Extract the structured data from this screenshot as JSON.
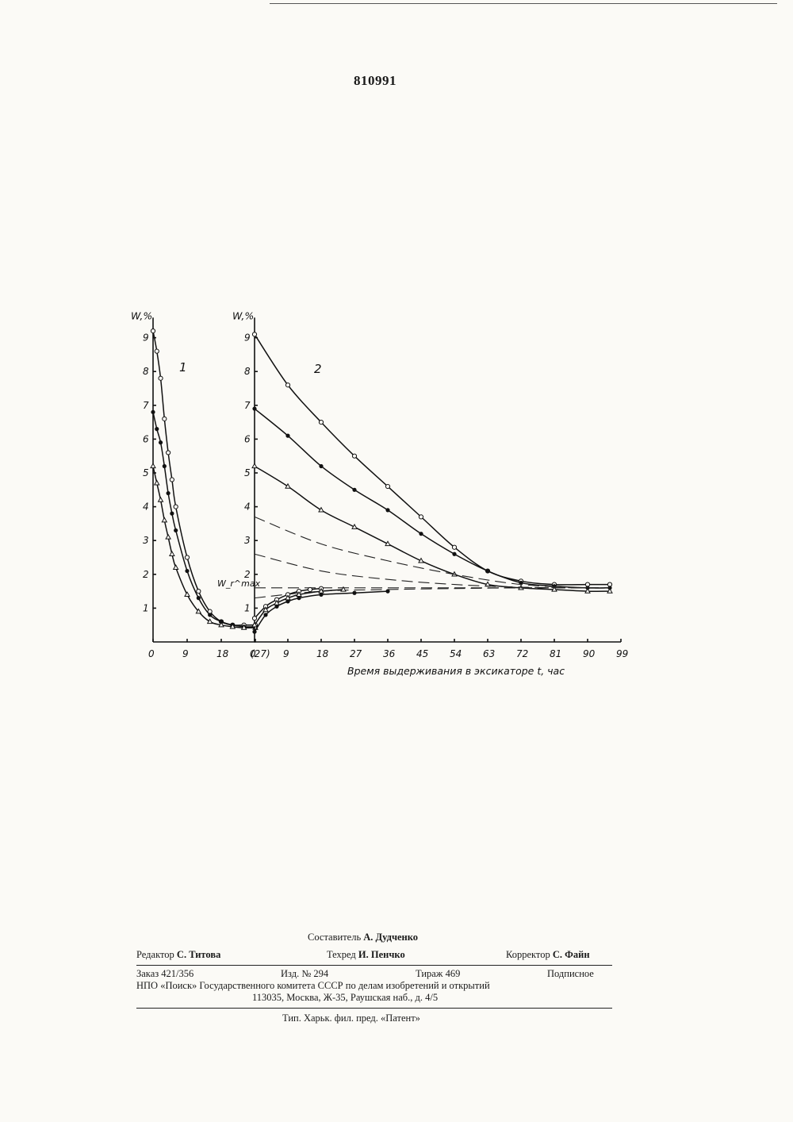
{
  "page_number": "810991",
  "chart_data": [
    {
      "panel": "1",
      "type": "line",
      "ylabel": "W,%",
      "ylim": [
        0,
        9.5
      ],
      "xlim": [
        0,
        27
      ],
      "y_ticks": [
        "1",
        "2",
        "3",
        "4",
        "5",
        "6",
        "7",
        "8",
        "9"
      ],
      "x_ticks": [
        "0",
        "9",
        "18",
        "(27)"
      ],
      "series": [
        {
          "marker": "open-circle",
          "x": [
            0,
            1,
            2,
            3,
            4,
            5,
            6,
            9,
            12,
            15,
            18,
            21,
            24,
            27
          ],
          "y": [
            9.2,
            8.6,
            7.8,
            6.6,
            5.6,
            4.8,
            4.0,
            2.5,
            1.5,
            0.9,
            0.6,
            0.5,
            0.5,
            0.5
          ]
        },
        {
          "marker": "filled-circle",
          "x": [
            0,
            1,
            2,
            3,
            4,
            5,
            6,
            9,
            12,
            15,
            18,
            21,
            24,
            27
          ],
          "y": [
            6.8,
            6.3,
            5.9,
            5.2,
            4.4,
            3.8,
            3.3,
            2.1,
            1.3,
            0.8,
            0.6,
            0.5,
            0.45,
            0.45
          ]
        },
        {
          "marker": "triangle",
          "x": [
            0,
            1,
            2,
            3,
            4,
            5,
            6,
            9,
            12,
            15,
            18,
            21,
            24,
            27
          ],
          "y": [
            5.2,
            4.7,
            4.2,
            3.6,
            3.1,
            2.6,
            2.2,
            1.4,
            0.9,
            0.6,
            0.5,
            0.45,
            0.42,
            0.42
          ]
        }
      ]
    },
    {
      "panel": "2",
      "type": "line",
      "ylabel": "W,%",
      "annotation": "W_r^max",
      "xlabel": "Время выдерживания в эксикаторе t, час",
      "ylim": [
        0,
        9.5
      ],
      "xlim": [
        0,
        99
      ],
      "y_ticks": [
        "1",
        "2",
        "3",
        "4",
        "5",
        "6",
        "7",
        "8",
        "9"
      ],
      "x_ticks": [
        "0",
        "9",
        "18",
        "27",
        "36",
        "45",
        "54",
        "63",
        "72",
        "81",
        "90",
        "99"
      ],
      "reference_level": 1.6,
      "series": [
        {
          "marker": "open-circle",
          "x": [
            0,
            9,
            18,
            27,
            36,
            45,
            54,
            63,
            72,
            81,
            90,
            96
          ],
          "y": [
            9.1,
            7.6,
            6.5,
            5.5,
            4.6,
            3.7,
            2.8,
            2.1,
            1.8,
            1.7,
            1.7,
            1.7
          ]
        },
        {
          "marker": "filled-circle",
          "x": [
            0,
            9,
            18,
            27,
            36,
            45,
            54,
            63,
            72,
            81,
            90,
            96
          ],
          "y": [
            6.9,
            6.1,
            5.2,
            4.5,
            3.9,
            3.2,
            2.6,
            2.1,
            1.75,
            1.65,
            1.6,
            1.6
          ]
        },
        {
          "marker": "triangle",
          "x": [
            0,
            9,
            18,
            27,
            36,
            45,
            54,
            63,
            72,
            81,
            90,
            96
          ],
          "y": [
            5.2,
            4.6,
            3.9,
            3.4,
            2.9,
            2.4,
            2.0,
            1.7,
            1.6,
            1.55,
            1.5,
            1.5
          ]
        },
        {
          "marker": "dashed",
          "x": [
            0,
            18,
            36,
            54,
            72,
            90,
            96
          ],
          "y": [
            3.7,
            2.9,
            2.4,
            2.0,
            1.7,
            1.6,
            1.6
          ]
        },
        {
          "marker": "dashed",
          "x": [
            0,
            18,
            36,
            54,
            72,
            90,
            96
          ],
          "y": [
            2.6,
            2.1,
            1.85,
            1.7,
            1.62,
            1.6,
            1.6
          ]
        },
        {
          "marker": "dashed",
          "x": [
            0,
            18,
            36,
            54,
            72,
            90,
            96
          ],
          "y": [
            1.3,
            1.5,
            1.55,
            1.58,
            1.6,
            1.6,
            1.6
          ]
        },
        {
          "marker": "open-circle",
          "x": [
            0,
            3,
            6,
            9,
            12,
            15,
            18
          ],
          "y": [
            0.7,
            1.05,
            1.25,
            1.4,
            1.5,
            1.55,
            1.58
          ]
        },
        {
          "marker": "filled-circle",
          "x": [
            0,
            3,
            6,
            9,
            12,
            18,
            27,
            36
          ],
          "y": [
            0.3,
            0.8,
            1.05,
            1.2,
            1.3,
            1.4,
            1.45,
            1.5
          ]
        },
        {
          "marker": "triangle",
          "x": [
            0,
            3,
            6,
            9,
            12,
            18,
            24
          ],
          "y": [
            0.5,
            0.95,
            1.15,
            1.3,
            1.4,
            1.5,
            1.55
          ]
        }
      ]
    }
  ],
  "footer": {
    "compiler_label": "Составитель",
    "compiler_name": "А. Дудченко",
    "editor_label": "Редактор",
    "editor_name": "С. Титова",
    "techred_label": "Техред",
    "techred_name": "И. Пенчко",
    "corrector_label": "Корректор",
    "corrector_name": "С. Файн",
    "order": "Заказ 421/356",
    "edition": "Изд. № 294",
    "circulation": "Тираж 469",
    "subscription": "Подписное",
    "org_line": "НПО «Поиск» Государственного комитета СССР по делам изобретений и открытий",
    "address_line": "113035, Москва, Ж-35, Раушская наб., д. 4/5",
    "printer_line": "Тип. Харьк. фил. пред. «Патент»"
  }
}
